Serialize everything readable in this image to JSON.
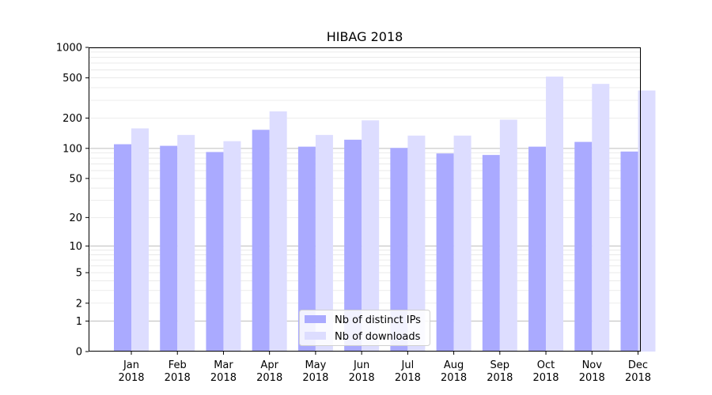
{
  "chart_data": {
    "type": "bar",
    "title": "HIBAG 2018",
    "xlabel": "",
    "ylabel": "",
    "y_scale": "log(1+y)",
    "ylim": [
      0,
      1000
    ],
    "y_ticks": [
      0,
      1,
      2,
      5,
      10,
      20,
      50,
      100,
      200,
      500,
      1000
    ],
    "grid": "horizontal, y-axis",
    "legend_position": "bottom-center",
    "categories": [
      {
        "month": "Jan",
        "year": "2018"
      },
      {
        "month": "Feb",
        "year": "2018"
      },
      {
        "month": "Mar",
        "year": "2018"
      },
      {
        "month": "Apr",
        "year": "2018"
      },
      {
        "month": "May",
        "year": "2018"
      },
      {
        "month": "Jun",
        "year": "2018"
      },
      {
        "month": "Jul",
        "year": "2018"
      },
      {
        "month": "Aug",
        "year": "2018"
      },
      {
        "month": "Sep",
        "year": "2018"
      },
      {
        "month": "Oct",
        "year": "2018"
      },
      {
        "month": "Nov",
        "year": "2018"
      },
      {
        "month": "Dec",
        "year": "2018"
      }
    ],
    "series": [
      {
        "name": "Nb of distinct IPs",
        "color": "#aaaaff",
        "values": [
          110,
          106,
          92,
          153,
          104,
          122,
          101,
          89,
          86,
          104,
          116,
          93
        ]
      },
      {
        "name": "Nb of downloads",
        "color": "#ddddff",
        "values": [
          158,
          136,
          118,
          233,
          136,
          190,
          134,
          134,
          193,
          515,
          436,
          375
        ]
      }
    ]
  }
}
